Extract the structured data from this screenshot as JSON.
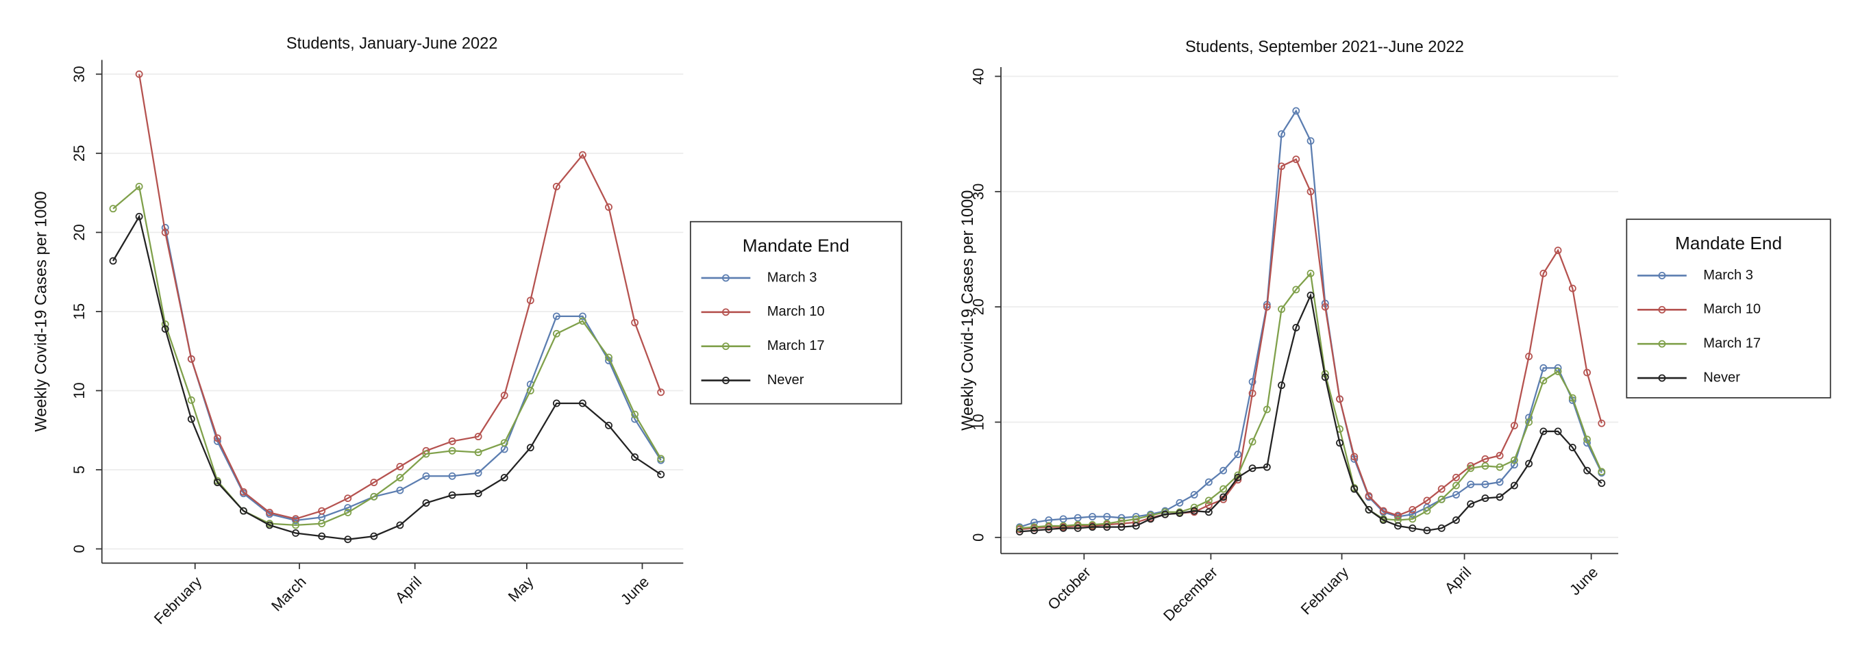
{
  "chart_data": [
    {
      "type": "line",
      "title": "Students, January-June 2022",
      "y_label": "Weekly Covid-19 Cases per 1000",
      "legend_title": "Mandate End",
      "legend": "right",
      "grid": true,
      "x": [
        10,
        17,
        24,
        31,
        38,
        45,
        52,
        59,
        66,
        73,
        80,
        87,
        94,
        101,
        108,
        115,
        122,
        129,
        136,
        143,
        150,
        157
      ],
      "xlim": [
        7,
        163
      ],
      "xticks": [
        {
          "value": 32,
          "label": "February"
        },
        {
          "value": 60,
          "label": "March"
        },
        {
          "value": 91,
          "label": "April"
        },
        {
          "value": 121,
          "label": "May"
        },
        {
          "value": 152,
          "label": "June"
        }
      ],
      "ylim": [
        -0.9,
        30.9
      ],
      "yticks": [
        0,
        5,
        10,
        15,
        20,
        25,
        30
      ],
      "series": [
        {
          "name": "March 3",
          "color": "#5b7db0",
          "values": [
            null,
            null,
            20.3,
            12,
            6.8,
            3.5,
            2.2,
            1.8,
            2.0,
            2.6,
            3.3,
            3.7,
            4.6,
            4.6,
            4.8,
            6.3,
            10.4,
            14.7,
            14.7,
            11.9,
            8.2,
            5.6
          ]
        },
        {
          "name": "March 10",
          "color": "#b5524f",
          "values": [
            null,
            30,
            20,
            12,
            7,
            3.6,
            2.3,
            1.9,
            2.4,
            3.2,
            4.2,
            5.2,
            6.2,
            6.8,
            7.1,
            9.7,
            15.7,
            22.9,
            24.9,
            21.6,
            14.3,
            9.9
          ]
        },
        {
          "name": "March 17",
          "color": "#7fa04a",
          "values": [
            21.5,
            22.9,
            14.2,
            9.4,
            4.3,
            2.4,
            1.6,
            1.5,
            1.6,
            2.3,
            3.3,
            4.5,
            6.0,
            6.2,
            6.1,
            6.7,
            10.0,
            13.6,
            14.4,
            12.1,
            8.5,
            5.7
          ]
        },
        {
          "name": "Never",
          "color": "#222222",
          "values": [
            18.2,
            21.0,
            13.9,
            8.2,
            4.2,
            2.4,
            1.5,
            1.0,
            0.8,
            0.6,
            0.8,
            1.5,
            2.9,
            3.4,
            3.5,
            4.5,
            6.4,
            9.2,
            9.2,
            7.8,
            5.8,
            4.7
          ]
        }
      ]
    },
    {
      "type": "line",
      "title": "Students, September 2021--June 2022",
      "y_label": "Weekly Covid-19 Cases per 1000",
      "legend_title": "Mandate End",
      "legend": "right",
      "grid": true,
      "x": [
        -123,
        -116,
        -109,
        -102,
        -95,
        -88,
        -81,
        -74,
        -67,
        -60,
        -53,
        -46,
        -39,
        -32,
        -25,
        -18,
        -11,
        -4,
        3,
        10,
        17,
        24,
        31,
        38,
        45,
        52,
        59,
        66,
        73,
        80,
        87,
        94,
        101,
        108,
        115,
        122,
        129,
        136,
        143,
        150,
        157
      ],
      "xlim": [
        -132,
        165
      ],
      "xticks": [
        {
          "value": -92,
          "label": "October"
        },
        {
          "value": -31,
          "label": "December"
        },
        {
          "value": 32,
          "label": "February"
        },
        {
          "value": 91,
          "label": "April"
        },
        {
          "value": 152,
          "label": "June"
        }
      ],
      "ylim": [
        -1.4,
        40.8
      ],
      "yticks": [
        0,
        10,
        20,
        30,
        40
      ],
      "series": [
        {
          "name": "March 3",
          "color": "#5b7db0",
          "values": [
            0.9,
            1.3,
            1.5,
            1.6,
            1.7,
            1.8,
            1.8,
            1.7,
            1.8,
            2.0,
            2.3,
            3.0,
            3.7,
            4.8,
            5.8,
            7.2,
            13.5,
            20.2,
            35,
            37,
            34.4,
            20.3,
            12,
            6.8,
            3.5,
            2.2,
            1.8,
            2.0,
            2.6,
            3.3,
            3.7,
            4.6,
            4.6,
            4.8,
            6.3,
            10.4,
            14.7,
            14.7,
            11.9,
            8.2,
            5.6
          ]
        },
        {
          "name": "March 10",
          "color": "#b5524f",
          "values": [
            0.7,
            0.8,
            0.9,
            0.9,
            1.0,
            1.0,
            1.1,
            1.2,
            1.3,
            1.7,
            2.0,
            2.1,
            2.2,
            2.8,
            3.3,
            5,
            12.5,
            20,
            32.2,
            32.8,
            30,
            20,
            12,
            7,
            3.6,
            2.3,
            1.9,
            2.4,
            3.2,
            4.2,
            5.2,
            6.2,
            6.8,
            7.1,
            9.7,
            15.7,
            22.9,
            24.9,
            21.6,
            14.3,
            9.9
          ]
        },
        {
          "name": "March 17",
          "color": "#7fa04a",
          "values": [
            0.8,
            0.9,
            1.0,
            1.0,
            1.1,
            1.1,
            1.2,
            1.4,
            1.6,
            1.9,
            2.2,
            2.2,
            2.6,
            3.2,
            4.2,
            5.4,
            8.3,
            11.1,
            19.8,
            21.5,
            22.9,
            14.2,
            9.4,
            4.3,
            2.4,
            1.6,
            1.5,
            1.6,
            2.3,
            3.3,
            4.5,
            6.0,
            6.2,
            6.1,
            6.7,
            10.0,
            13.6,
            14.4,
            12.1,
            8.5,
            5.7
          ]
        },
        {
          "name": "Never",
          "color": "#222222",
          "values": [
            0.5,
            0.6,
            0.7,
            0.8,
            0.8,
            0.9,
            0.9,
            0.9,
            1.0,
            1.6,
            2.0,
            2.1,
            2.3,
            2.2,
            3.5,
            5.2,
            6.0,
            6.1,
            13.2,
            18.2,
            21.0,
            13.9,
            8.2,
            4.2,
            2.4,
            1.5,
            1.0,
            0.8,
            0.6,
            0.8,
            1.5,
            2.9,
            3.4,
            3.5,
            4.5,
            6.4,
            9.2,
            9.2,
            7.8,
            5.8,
            4.7
          ]
        }
      ]
    }
  ]
}
